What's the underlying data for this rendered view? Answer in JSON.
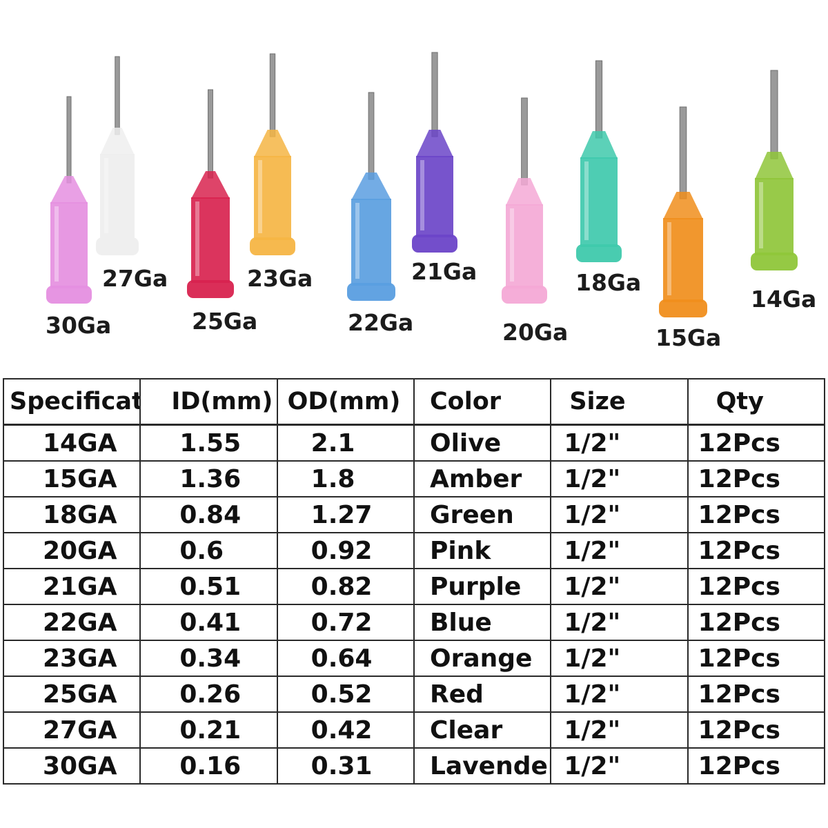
{
  "needles": [
    {
      "gauge_label": "30Ga",
      "color": "#e58fe0"
    },
    {
      "gauge_label": "27Ga",
      "color": "#eeeeee"
    },
    {
      "gauge_label": "25Ga",
      "color": "#d8234f"
    },
    {
      "gauge_label": "23Ga",
      "color": "#f5b544"
    },
    {
      "gauge_label": "22Ga",
      "color": "#5a9ee0"
    },
    {
      "gauge_label": "21Ga",
      "color": "#6b45c8"
    },
    {
      "gauge_label": "20Ga",
      "color": "#f4a9d6"
    },
    {
      "gauge_label": "18Ga",
      "color": "#3fc9ac"
    },
    {
      "gauge_label": "15Ga",
      "color": "#f08e1c"
    },
    {
      "gauge_label": "14Ga",
      "color": "#8fc63a"
    }
  ],
  "table": {
    "headers": [
      "Specification",
      "ID(mm)",
      "OD(mm)",
      "Color",
      "Size",
      "Qty"
    ],
    "rows": [
      [
        "14GA",
        "1.55",
        "2.1",
        "Olive",
        "1/2\"",
        "12Pcs"
      ],
      [
        "15GA",
        "1.36",
        "1.8",
        "Amber",
        "1/2\"",
        "12Pcs"
      ],
      [
        "18GA",
        "0.84",
        "1.27",
        "Green",
        "1/2\"",
        "12Pcs"
      ],
      [
        "20GA",
        "0.6",
        "0.92",
        "Pink",
        "1/2\"",
        "12Pcs"
      ],
      [
        "21GA",
        "0.51",
        "0.82",
        "Purple",
        "1/2\"",
        "12Pcs"
      ],
      [
        "22GA",
        "0.41",
        "0.72",
        "Blue",
        "1/2\"",
        "12Pcs"
      ],
      [
        "23GA",
        "0.34",
        "0.64",
        "Orange",
        "1/2\"",
        "12Pcs"
      ],
      [
        "25GA",
        "0.26",
        "0.52",
        "Red",
        "1/2\"",
        "12Pcs"
      ],
      [
        "27GA",
        "0.21",
        "0.42",
        "Clear",
        "1/2\"",
        "12Pcs"
      ],
      [
        "30GA",
        "0.16",
        "0.31",
        "Lavender",
        "1/2\"",
        "12Pcs"
      ]
    ]
  }
}
